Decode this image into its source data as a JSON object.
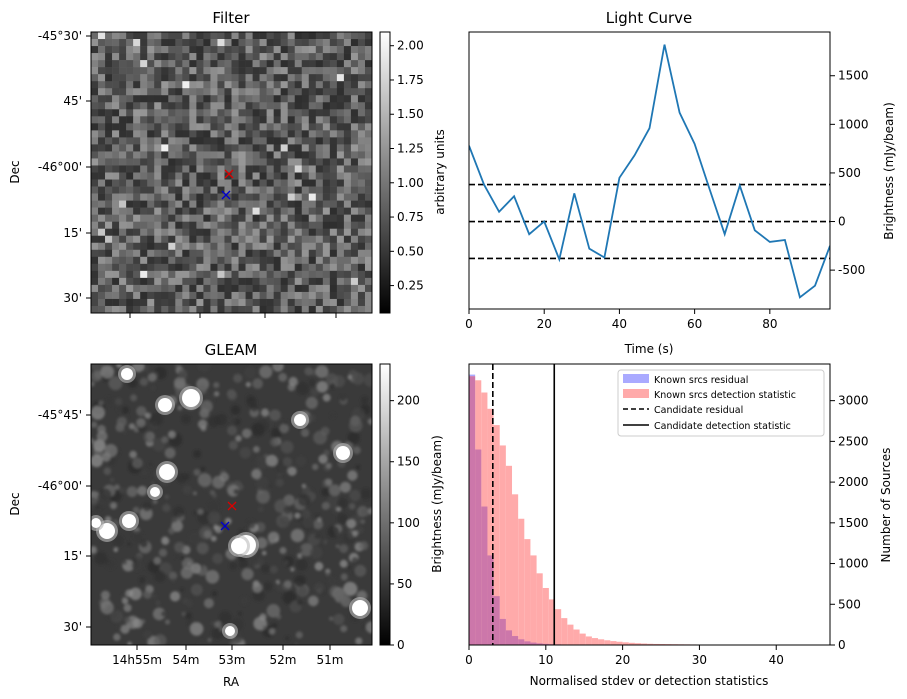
{
  "colors": {
    "line": "#1f77b4",
    "known_residual": "#aaaaff",
    "known_detection": "#ffaaaa",
    "overlap": "#cc77aa",
    "marker_red": "#dd0000",
    "marker_blue": "#0000cc"
  },
  "chart_data": [
    {
      "type": "heatmap",
      "title": "Filter",
      "ylabel": "Dec",
      "yticks": [
        "-45°30'",
        "45'",
        "-46°00'",
        "15'",
        "30'"
      ],
      "colorbar": {
        "label": "arbitrary units",
        "range": [
          0.05,
          2.1
        ],
        "ticks": [
          "0.25",
          "0.50",
          "0.75",
          "1.00",
          "1.25",
          "1.50",
          "1.75",
          "2.00"
        ]
      },
      "markers": [
        {
          "label": "candidate",
          "symbol": "x",
          "color": "red"
        },
        {
          "label": "reference",
          "symbol": "x",
          "color": "blue"
        }
      ]
    },
    {
      "type": "line",
      "title": "Light Curve",
      "xlabel": "Time (s)",
      "ylabel": "Brightness (mJy/beam)",
      "xlim": [
        0,
        96
      ],
      "ylim": [
        -900,
        1950
      ],
      "xticks": [
        "0",
        "20",
        "40",
        "60",
        "80"
      ],
      "yticks": [
        "-500",
        "0",
        "500",
        "1000",
        "1500"
      ],
      "x": [
        0,
        4,
        8,
        12,
        16,
        20,
        24,
        28,
        32,
        36,
        40,
        44,
        48,
        52,
        56,
        60,
        64,
        68,
        72,
        76,
        80,
        84,
        88,
        92,
        96
      ],
      "values": [
        780,
        380,
        100,
        260,
        -130,
        0,
        -390,
        290,
        -280,
        -370,
        450,
        680,
        960,
        1820,
        1120,
        800,
        330,
        -130,
        370,
        -90,
        -210,
        -190,
        -780,
        -660,
        -250
      ],
      "hlines": [
        380,
        0,
        -380
      ]
    },
    {
      "type": "heatmap",
      "title": "GLEAM",
      "xlabel": "RA",
      "ylabel": "Dec",
      "xticks": [
        "14h55m",
        "54m",
        "53m",
        "52m",
        "51m"
      ],
      "yticks": [
        "-45°45'",
        "-46°00'",
        "15'",
        "30'"
      ],
      "colorbar": {
        "label": "Brightness (mJy/beam)",
        "range": [
          0,
          230
        ],
        "ticks": [
          "0",
          "50",
          "100",
          "150",
          "200"
        ]
      },
      "markers": [
        {
          "label": "candidate",
          "symbol": "x",
          "color": "red"
        },
        {
          "label": "reference",
          "symbol": "x",
          "color": "blue"
        }
      ]
    },
    {
      "type": "bar",
      "title": "",
      "xlabel": "Normalised stdev or detection statistics",
      "ylabel": "Number of Sources",
      "xlim": [
        0,
        47
      ],
      "ylim": [
        0,
        3450
      ],
      "xticks": [
        "0",
        "10",
        "20",
        "30",
        "40"
      ],
      "yticks": [
        "0",
        "500",
        "1000",
        "1500",
        "2000",
        "2500",
        "3000"
      ],
      "bin_width": 0.8,
      "bin_start": 0,
      "series": [
        {
          "name": "Known srcs residual",
          "values": [
            3320,
            2400,
            1700,
            1100,
            600,
            320,
            180,
            110,
            70,
            45,
            30,
            20,
            14,
            10,
            8,
            6,
            5,
            4,
            3,
            2
          ]
        },
        {
          "name": "Known srcs detection statistic",
          "values": [
            3300,
            3250,
            3100,
            2900,
            2700,
            2450,
            2200,
            1850,
            1550,
            1300,
            1100,
            880,
            700,
            560,
            440,
            330,
            250,
            190,
            140,
            105,
            85,
            70,
            58,
            48,
            40,
            33,
            27,
            22,
            18,
            15,
            13,
            12,
            11,
            10,
            9,
            8,
            7,
            6,
            6,
            5,
            5,
            4,
            4,
            3,
            3,
            3,
            2,
            2,
            2,
            2,
            2,
            2,
            1,
            1,
            1,
            1
          ]
        }
      ],
      "vlines": [
        {
          "name": "Candidate residual",
          "x": 3.1,
          "style": "dashed"
        },
        {
          "name": "Candidate detection statistic",
          "x": 11.1,
          "style": "solid"
        }
      ]
    }
  ]
}
